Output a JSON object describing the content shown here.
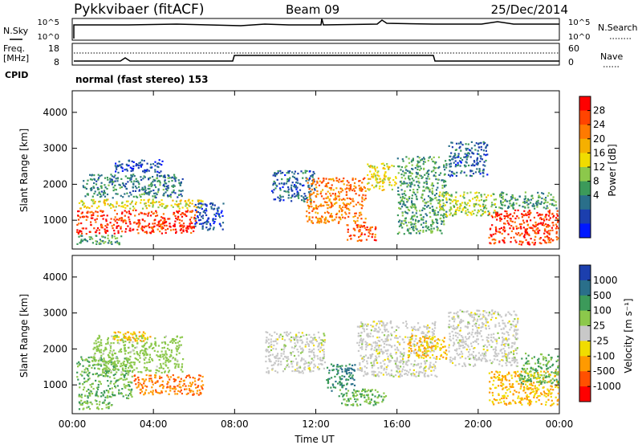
{
  "header": {
    "station": "Pykkvibaer (fitACF)",
    "beam": "Beam 09",
    "date": "25/Dec/2014"
  },
  "top_panel": {
    "nsky_label": "N.Sky",
    "nsearch_label": "N.Search",
    "left_ticks": [
      "10^5",
      "10^0"
    ],
    "right_ticks": [
      "10^5",
      "10^0"
    ],
    "freq_label_line1": "Freq.",
    "freq_label_line2": "[MHz]",
    "freq_ticks": [
      "18",
      "8"
    ],
    "nave_label": "Nave",
    "nave_ticks": [
      "60",
      "0"
    ],
    "cpid_label": "CPID",
    "cpid_text": "normal (fast stereo) 153"
  },
  "power_scale": {
    "label": "Power [dB]",
    "ticks": [
      "28",
      "24",
      "20",
      "16",
      "12",
      "8",
      "4"
    ],
    "colors": [
      "#ff0000",
      "#ff4400",
      "#ff7a00",
      "#f5b000",
      "#f0dc00",
      "#8cc84b",
      "#3c9a5a",
      "#2a6f8a",
      "#1c3fae",
      "#0018ff"
    ]
  },
  "velocity_scale": {
    "label": "Velocity [m s⁻¹]",
    "ticks": [
      "1000",
      "500",
      "100",
      "25",
      "-25",
      "-100",
      "-500",
      "-1000"
    ],
    "colors": [
      "#1c3fae",
      "#2a6f8a",
      "#3c9a5a",
      "#8cc84b",
      "#c8c8c8",
      "#f0dc00",
      "#ff9a00",
      "#ff5000",
      "#ff0000"
    ]
  },
  "chart_data": [
    {
      "type": "heatmap",
      "title": "Power",
      "xlabel": "Time UT",
      "ylabel": "Slant Range [km]",
      "x_ticks": [
        "00:00",
        "04:00",
        "08:00",
        "12:00",
        "16:00",
        "20:00",
        "00:00"
      ],
      "y_ticks": [
        "4000",
        "3000",
        "2000",
        "1000"
      ],
      "xlim_hours": [
        0,
        24
      ],
      "ylim_km": [
        200,
        4600
      ],
      "colorbar": "Power [dB]",
      "cells": [
        {
          "t0": 0.2,
          "t1": 6.2,
          "r0": 600,
          "r1": 1300,
          "v": 28
        },
        {
          "t0": 0.3,
          "t1": 6.5,
          "r0": 1300,
          "r1": 1600,
          "v": 18
        },
        {
          "t0": 0.5,
          "t1": 5.5,
          "r0": 1600,
          "r1": 2300,
          "v": 10
        },
        {
          "t0": 2.0,
          "t1": 4.5,
          "r0": 2300,
          "r1": 2700,
          "v": 6
        },
        {
          "t0": 0.2,
          "t1": 2.5,
          "r0": 300,
          "r1": 600,
          "v": 12
        },
        {
          "t0": 6.0,
          "t1": 7.5,
          "r0": 700,
          "r1": 1500,
          "v": 6
        },
        {
          "t0": 9.8,
          "t1": 12.0,
          "r0": 1500,
          "r1": 2400,
          "v": 8
        },
        {
          "t0": 11.5,
          "t1": 14.5,
          "r0": 900,
          "r1": 2200,
          "v": 24
        },
        {
          "t0": 13.5,
          "t1": 15.0,
          "r0": 400,
          "r1": 900,
          "v": 26
        },
        {
          "t0": 14.5,
          "t1": 16.0,
          "r0": 1800,
          "r1": 2600,
          "v": 18
        },
        {
          "t0": 16.0,
          "t1": 18.5,
          "r0": 600,
          "r1": 2800,
          "v": 12
        },
        {
          "t0": 18.0,
          "t1": 21.0,
          "r0": 1100,
          "r1": 1800,
          "v": 16
        },
        {
          "t0": 18.5,
          "t1": 20.5,
          "r0": 2200,
          "r1": 3200,
          "v": 8
        },
        {
          "t0": 20.5,
          "t1": 24.0,
          "r0": 300,
          "r1": 1300,
          "v": 28
        },
        {
          "t0": 21.0,
          "t1": 24.0,
          "r0": 1300,
          "r1": 1800,
          "v": 12
        }
      ]
    },
    {
      "type": "heatmap",
      "title": "Velocity",
      "xlabel": "Time UT",
      "ylabel": "Slant Range [km]",
      "x_ticks": [
        "00:00",
        "04:00",
        "08:00",
        "12:00",
        "16:00",
        "20:00",
        "00:00"
      ],
      "y_ticks": [
        "4000",
        "3000",
        "2000",
        "1000"
      ],
      "xlim_hours": [
        0,
        24
      ],
      "ylim_km": [
        200,
        4600
      ],
      "colorbar": "Velocity [m s⁻¹]",
      "cells": [
        {
          "t0": 0.2,
          "t1": 3.0,
          "r0": 600,
          "r1": 1800,
          "v": 100
        },
        {
          "t0": 3.0,
          "t1": 6.5,
          "r0": 700,
          "r1": 1300,
          "v": -500
        },
        {
          "t0": 1.0,
          "t1": 5.5,
          "r0": 1300,
          "r1": 2400,
          "v": 50
        },
        {
          "t0": 2.0,
          "t1": 4.0,
          "r0": 2200,
          "r1": 2500,
          "v": -100
        },
        {
          "t0": 0.2,
          "t1": 2.0,
          "r0": 300,
          "r1": 600,
          "v": 100
        },
        {
          "t0": 9.5,
          "t1": 12.5,
          "r0": 1300,
          "r1": 2500,
          "v": 0
        },
        {
          "t0": 12.5,
          "t1": 14.0,
          "r0": 800,
          "r1": 1600,
          "v": 500
        },
        {
          "t0": 13.0,
          "t1": 15.5,
          "r0": 400,
          "r1": 900,
          "v": 100
        },
        {
          "t0": 14.0,
          "t1": 18.0,
          "r0": 1200,
          "r1": 2800,
          "v": 0
        },
        {
          "t0": 16.5,
          "t1": 18.5,
          "r0": 1700,
          "r1": 2400,
          "v": -100
        },
        {
          "t0": 18.5,
          "t1": 22.0,
          "r0": 1500,
          "r1": 3100,
          "v": 0
        },
        {
          "t0": 20.5,
          "t1": 24.0,
          "r0": 400,
          "r1": 1400,
          "v": -100
        },
        {
          "t0": 22.0,
          "t1": 24.0,
          "r0": 1000,
          "r1": 1900,
          "v": 100
        }
      ]
    }
  ]
}
